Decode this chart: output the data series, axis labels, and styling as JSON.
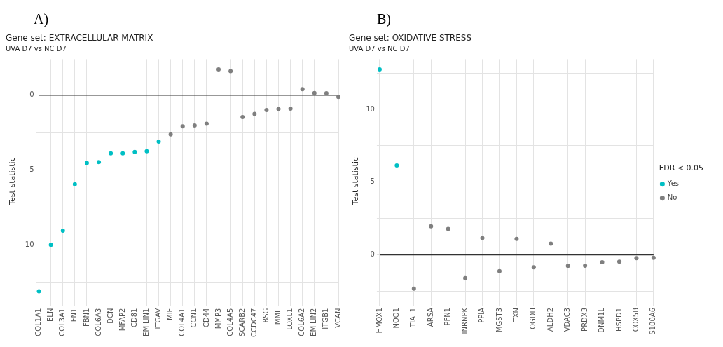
{
  "chart_data": [
    {
      "type": "scatter",
      "title": "Gene set: EXTRACELLULAR MATRIX",
      "subtitle": "UVA D7 vs NC D7",
      "ylabel": "Test statistic",
      "annotations": [
        "A)"
      ],
      "categories": [
        "COL1A1",
        "ELN",
        "COL3A1",
        "FN1",
        "FBN1",
        "COL6A3",
        "DCN",
        "MFAP2",
        "CD81",
        "EMILIN1",
        "ITGAV",
        "MIF",
        "COL4A1",
        "CCN1",
        "CD44",
        "MMP3",
        "COL4A5",
        "SCARB2",
        "CCDC47",
        "BSG",
        "MME",
        "LOXL1",
        "COL6A2",
        "EMILIN2",
        "ITGB1",
        "VCAN"
      ],
      "series": [
        {
          "color": "#00bfc4",
          "values": [
            -13.1,
            -10.0,
            -9.05,
            -5.95,
            -4.53,
            -4.47,
            -3.89,
            -3.89,
            -3.8,
            -3.75,
            -3.1,
            null,
            null,
            null,
            null,
            null,
            null,
            null,
            null,
            null,
            null,
            null,
            null,
            null,
            null,
            null
          ]
        },
        {
          "color": "#7f7f7f",
          "values": [
            null,
            null,
            null,
            null,
            null,
            null,
            null,
            null,
            null,
            null,
            null,
            -2.63,
            -2.09,
            -2.03,
            -1.91,
            1.72,
            1.6,
            -1.47,
            -1.25,
            -1.0,
            -0.93,
            -0.91,
            0.4,
            0.14,
            0.12,
            -0.12
          ]
        }
      ],
      "ylim": [
        -13.9,
        2.4
      ],
      "yticks": [
        {
          "value": -12.5,
          "label": null
        },
        -10,
        {
          "value": -7.5,
          "label": null
        },
        -5,
        {
          "value": -2.5,
          "label": null
        },
        0
      ],
      "grid": true,
      "marker": "circle",
      "ref_lines": [
        {
          "axis": "y",
          "value": 0,
          "color": "#333333"
        }
      ]
    },
    {
      "type": "scatter",
      "title": "Gene set: OXIDATIVE STRESS",
      "subtitle": "UVA D7 vs NC D7",
      "ylabel": "Test statistic",
      "annotations": [
        "B)"
      ],
      "legend_title": "FDR < 0.05",
      "categories": [
        "HMOX1",
        "NQO1",
        "TIAL1",
        "ARSA",
        "PFN1",
        "HNRNPK",
        "PPIA",
        "MGST3",
        "TXN",
        "OGDH",
        "ALDH2",
        "VDAC3",
        "PRDX3",
        "DNM1L",
        "HSPD1",
        "COX5B",
        "S100A6"
      ],
      "series": [
        {
          "name": "Yes",
          "color": "#00bfc4",
          "values": [
            12.75,
            6.15,
            null,
            null,
            null,
            null,
            null,
            null,
            null,
            null,
            null,
            null,
            null,
            null,
            null,
            null,
            null
          ]
        },
        {
          "name": "No",
          "color": "#7f7f7f",
          "values": [
            null,
            null,
            -2.32,
            1.96,
            1.78,
            -1.6,
            1.16,
            -1.12,
            1.1,
            -0.85,
            0.77,
            -0.76,
            -0.75,
            -0.5,
            -0.47,
            -0.23,
            -0.2
          ]
        }
      ],
      "ylim": [
        -3.3,
        13.45
      ],
      "yticks": [
        {
          "value": -2.5,
          "label": null
        },
        0,
        {
          "value": 2.5,
          "label": null
        },
        5,
        {
          "value": 7.5,
          "label": null
        },
        10,
        {
          "value": 12.5,
          "label": null
        }
      ],
      "grid": true,
      "marker": "circle",
      "legend": "right",
      "ref_lines": [
        {
          "axis": "y",
          "value": 0,
          "color": "#333333"
        }
      ]
    }
  ]
}
